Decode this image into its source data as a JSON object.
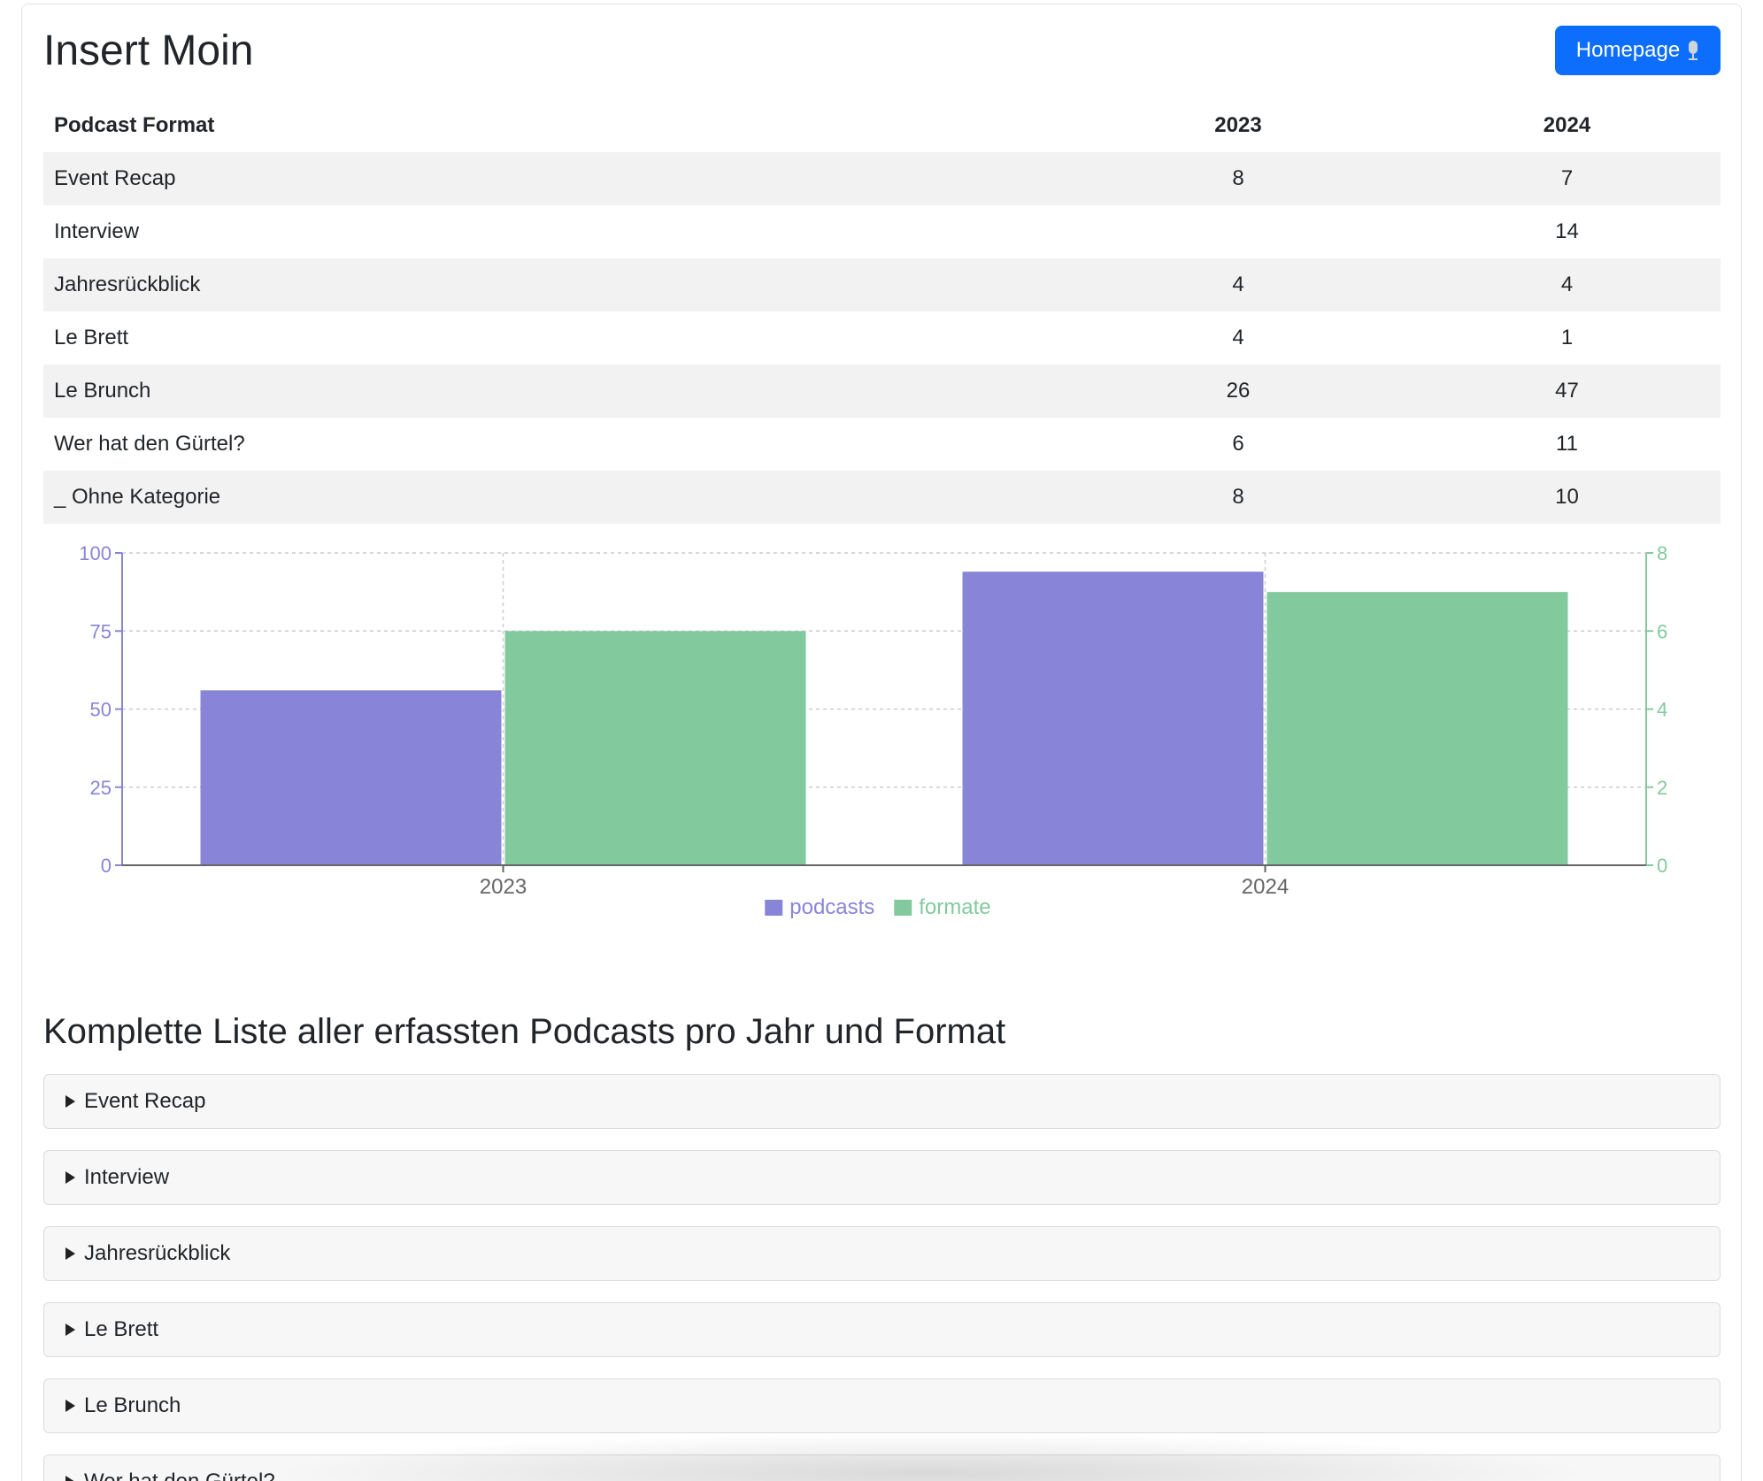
{
  "header": {
    "title": "Insert Moin",
    "homepage_label": "Homepage"
  },
  "table": {
    "headers": [
      "Podcast Format",
      "2023",
      "2024"
    ],
    "rows": [
      {
        "format": "Event Recap",
        "y2023": "8",
        "y2024": "7"
      },
      {
        "format": "Interview",
        "y2023": "",
        "y2024": "14"
      },
      {
        "format": "Jahresrückblick",
        "y2023": "4",
        "y2024": "4"
      },
      {
        "format": "Le Brett",
        "y2023": "4",
        "y2024": "1"
      },
      {
        "format": "Le Brunch",
        "y2023": "26",
        "y2024": "47"
      },
      {
        "format": "Wer hat den Gürtel?",
        "y2023": "6",
        "y2024": "11"
      },
      {
        "format": "_ Ohne Kategorie",
        "y2023": "8",
        "y2024": "10"
      }
    ]
  },
  "chart_data": {
    "type": "bar",
    "categories": [
      "2023",
      "2024"
    ],
    "series": [
      {
        "name": "podcasts",
        "axis": "left",
        "color": "#8884d8",
        "values": [
          56,
          94
        ]
      },
      {
        "name": "formate",
        "axis": "right",
        "color": "#82ca9d",
        "values": [
          6,
          7
        ]
      }
    ],
    "y_left_ticks": [
      "0",
      "25",
      "50",
      "75",
      "100"
    ],
    "y_left_range": [
      0,
      100
    ],
    "y_right_ticks": [
      "0",
      "2",
      "4",
      "6",
      "8"
    ],
    "y_right_range": [
      0,
      8
    ],
    "grid": true,
    "legend_position": "bottom"
  },
  "section": {
    "title": "Komplette Liste aller erfassten Podcasts pro Jahr und Format"
  },
  "accordion": {
    "items": [
      "Event Recap",
      "Interview",
      "Jahresrückblick",
      "Le Brett",
      "Le Brunch",
      "Wer hat den Gürtel?"
    ]
  },
  "colors": {
    "primary": "#0d6efd",
    "podcasts": "#8884d8",
    "formate": "#82ca9d"
  },
  "icons": {
    "homepage": "microphone-icon",
    "accordion": "caret-right-icon"
  }
}
